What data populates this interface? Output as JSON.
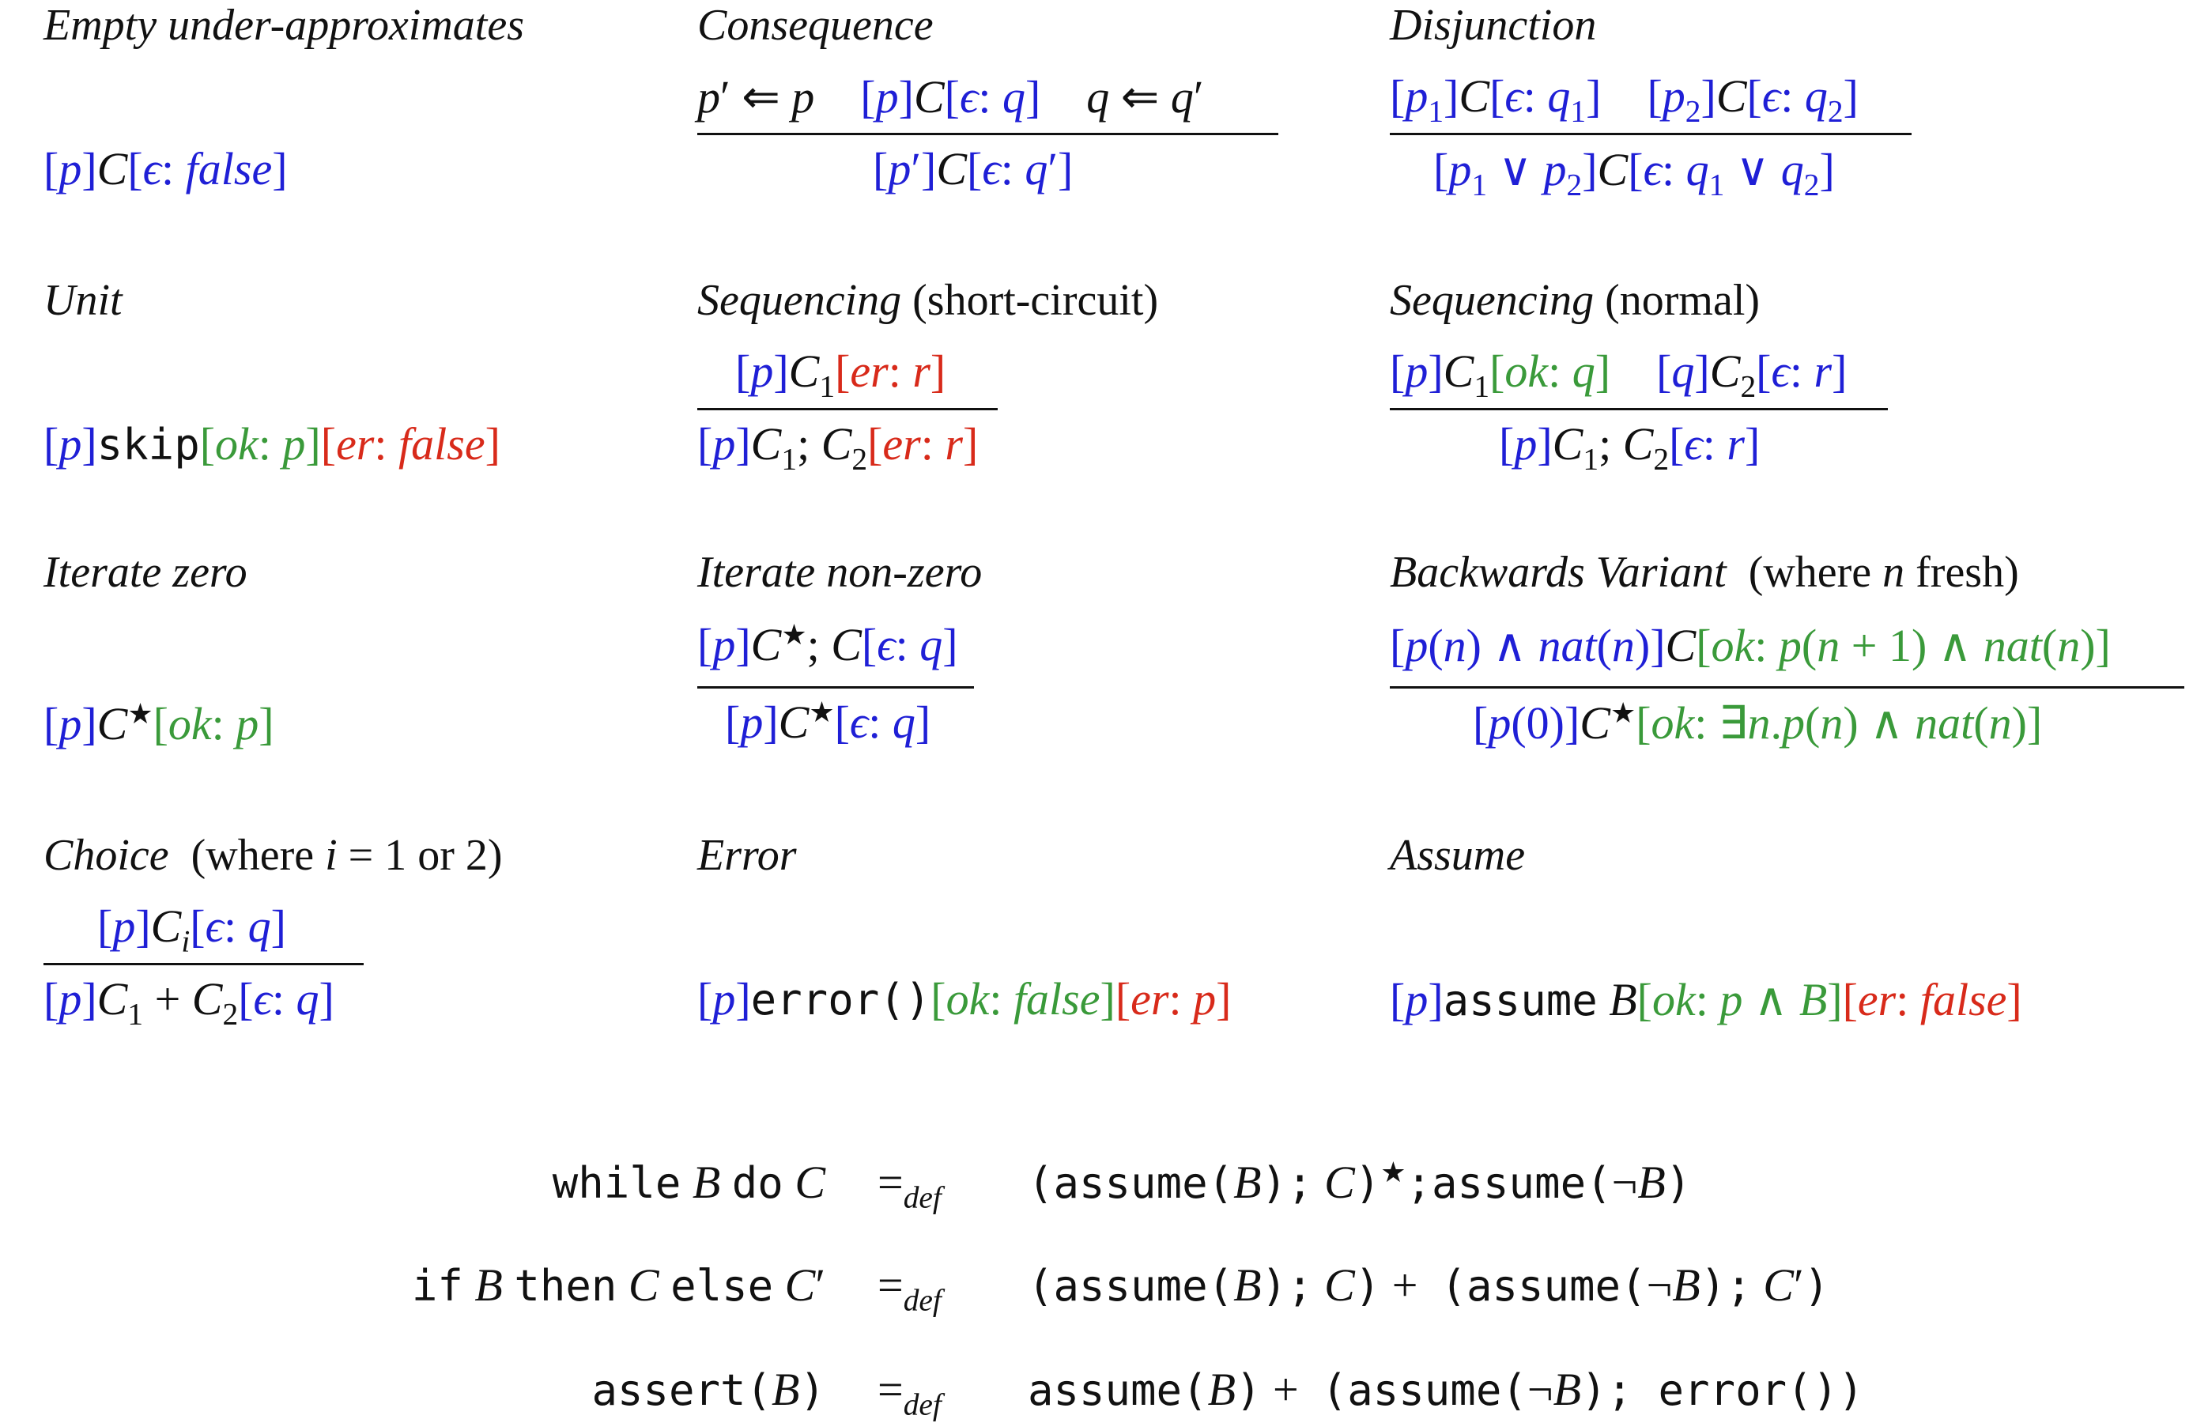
{
  "rules": {
    "empty": {
      "name": "Empty under-approximates",
      "conclusion": "[p]C[ϵ: false]"
    },
    "consequence": {
      "name": "Consequence",
      "premise_1": "p′ ⇐ p",
      "premise_2": "[p]C[ϵ: q]",
      "premise_3": "q ⇐ q′",
      "conclusion": "[p′]C[ϵ: q′]"
    },
    "disjunction": {
      "name": "Disjunction",
      "premise_1": "[p1]C[ϵ: q1]",
      "premise_2": "[p2]C[ϵ: q2]",
      "conclusion": "[p1 ∨ p2]C[ϵ: q1 ∨ q2]"
    },
    "unit": {
      "name": "Unit",
      "conclusion": "[p]skip[ok: p][er: false]"
    },
    "seq_short": {
      "name": "Sequencing",
      "qualifier": "(short-circuit)",
      "premise_1": "[p]C1[er: r]",
      "conclusion": "[p]C1; C2[er: r]"
    },
    "seq_normal": {
      "name": "Sequencing",
      "qualifier": "(normal)",
      "premise_1": "[p]C1[ok: q]",
      "premise_2": "[q]C2[ϵ: r]",
      "conclusion": "[p]C1; C2[ϵ: r]"
    },
    "iter_zero": {
      "name": "Iterate zero",
      "conclusion": "[p]C★[ok: p]"
    },
    "iter_nonzero": {
      "name": "Iterate non-zero",
      "premise_1": "[p]C★; C[ϵ: q]",
      "conclusion": "[p]C★[ϵ: q]"
    },
    "back_variant": {
      "name": "Backwards Variant",
      "qualifier": "(where n fresh)",
      "premise_1": "[p(n) ∧ nat(n)]C[ok: p(n + 1) ∧ nat(n)]",
      "conclusion": "[p(0)]C★[ok: ∃n.p(n) ∧ nat(n)]"
    },
    "choice": {
      "name": "Choice",
      "qualifier": "(where i = 1 or 2)",
      "premise_1": "[p]Ci[ϵ: q]",
      "conclusion": "[p]C1 + C2[ϵ: q]"
    },
    "error": {
      "name": "Error",
      "conclusion": "[p]error()[ok: false][er: p]"
    },
    "assume": {
      "name": "Assume",
      "conclusion": "[p]assume B[ok: p ∧ B][er: false]"
    }
  },
  "definitions": [
    {
      "lhs": "while B do C",
      "eq": "=def",
      "rhs": "(assume(B); C)★; assume(¬B)"
    },
    {
      "lhs": "if B then C else C′",
      "eq": "=def",
      "rhs": "(assume(B); C) + (assume(¬B); C′)"
    },
    {
      "lhs": "assert(B)",
      "eq": "=def",
      "rhs": "assume(B) + (assume(¬B); error())"
    }
  ],
  "colors": {
    "pre": "#1f1fd6",
    "ok": "#3a9a3a",
    "er": "#d82a1a"
  }
}
